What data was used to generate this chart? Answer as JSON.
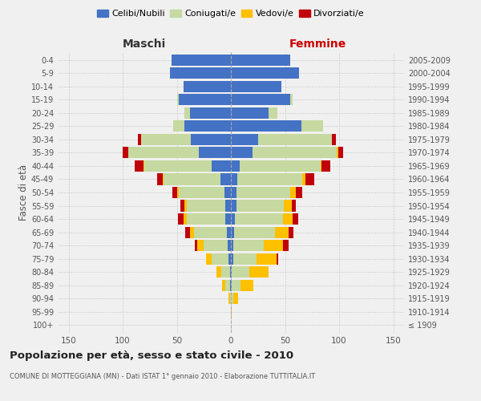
{
  "age_groups": [
    "100+",
    "95-99",
    "90-94",
    "85-89",
    "80-84",
    "75-79",
    "70-74",
    "65-69",
    "60-64",
    "55-59",
    "50-54",
    "45-49",
    "40-44",
    "35-39",
    "30-34",
    "25-29",
    "20-24",
    "15-19",
    "10-14",
    "5-9",
    "0-4"
  ],
  "birth_years": [
    "≤ 1909",
    "1910-1914",
    "1915-1919",
    "1920-1924",
    "1925-1929",
    "1930-1934",
    "1935-1939",
    "1940-1944",
    "1945-1949",
    "1950-1954",
    "1955-1959",
    "1960-1964",
    "1965-1969",
    "1970-1974",
    "1975-1979",
    "1980-1984",
    "1985-1989",
    "1990-1994",
    "1995-1999",
    "2000-2004",
    "2005-2009"
  ],
  "colors": {
    "celibi": "#4472c4",
    "coniugati": "#c5d9a0",
    "vedovi": "#ffc000",
    "divorziati": "#c0000b"
  },
  "maschi_celibi": [
    0,
    0,
    0,
    1,
    1,
    2,
    3,
    4,
    5,
    5,
    6,
    10,
    18,
    30,
    37,
    43,
    38,
    48,
    44,
    56,
    55
  ],
  "maschi_coniugati": [
    0,
    0,
    1,
    4,
    8,
    16,
    22,
    30,
    36,
    36,
    42,
    52,
    62,
    65,
    46,
    10,
    5,
    2,
    0,
    0,
    0
  ],
  "maschi_vedovi": [
    0,
    0,
    1,
    3,
    4,
    5,
    6,
    4,
    3,
    2,
    2,
    1,
    1,
    0,
    0,
    0,
    0,
    0,
    0,
    0,
    0
  ],
  "maschi_divorziati": [
    0,
    0,
    0,
    0,
    0,
    0,
    2,
    4,
    5,
    4,
    4,
    5,
    8,
    5,
    3,
    0,
    0,
    0,
    0,
    0,
    0
  ],
  "femmine_celibi": [
    0,
    0,
    0,
    1,
    1,
    2,
    2,
    3,
    4,
    5,
    5,
    6,
    8,
    20,
    25,
    65,
    35,
    55,
    47,
    63,
    55
  ],
  "femmine_coniugati": [
    0,
    0,
    2,
    8,
    16,
    22,
    28,
    38,
    44,
    44,
    50,
    60,
    75,
    78,
    68,
    20,
    8,
    2,
    0,
    0,
    0
  ],
  "femmine_vedovi": [
    0,
    1,
    5,
    12,
    18,
    18,
    18,
    12,
    9,
    7,
    5,
    3,
    1,
    1,
    0,
    0,
    0,
    0,
    0,
    0,
    0
  ],
  "femmine_divorziati": [
    0,
    0,
    0,
    0,
    0,
    2,
    5,
    5,
    5,
    4,
    6,
    8,
    8,
    5,
    4,
    0,
    0,
    0,
    0,
    0,
    0
  ],
  "xlim": 160,
  "title": "Popolazione per età, sesso e stato civile - 2010",
  "subtitle": "COMUNE DI MOTTEGGIANA (MN) - Dati ISTAT 1° gennaio 2010 - Elaborazione TUTTITALIA.IT",
  "ylabel_left": "Fasce di età",
  "xlabel_left": "Maschi",
  "xlabel_right": "Femmine",
  "background": "#f0f0f0",
  "grid_color": "#cccccc"
}
